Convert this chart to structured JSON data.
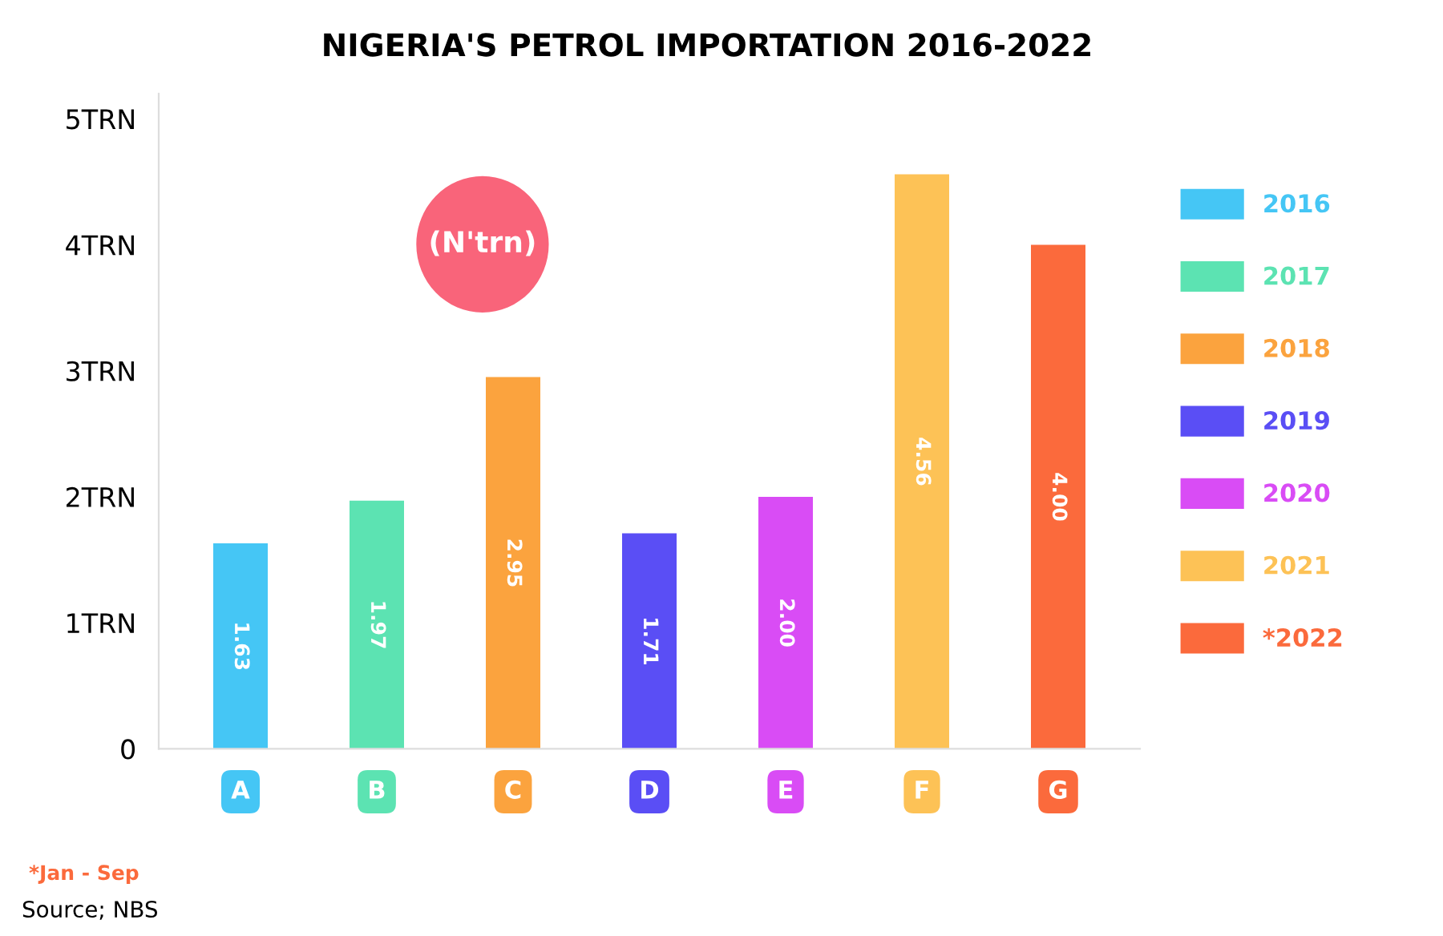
{
  "chart_data": {
    "type": "bar",
    "title": "NIGERIA'S PETROL IMPORTATION 2016-2022",
    "categories": [
      "A",
      "B",
      "C",
      "D",
      "E",
      "F",
      "G"
    ],
    "series": [
      {
        "name": "2016",
        "color": "#45c6f5",
        "values": [
          1.63,
          null,
          null,
          null,
          null,
          null,
          null
        ],
        "value_labels": [
          "1.63",
          null,
          null,
          null,
          null,
          null,
          null
        ]
      },
      {
        "name": "2017",
        "color": "#5ce3b2",
        "values": [
          null,
          1.97,
          null,
          null,
          null,
          null,
          null
        ],
        "value_labels": [
          null,
          "1.97",
          null,
          null,
          null,
          null,
          null
        ]
      },
      {
        "name": "2018",
        "color": "#fba33e",
        "values": [
          null,
          null,
          2.95,
          null,
          null,
          null,
          null
        ],
        "value_labels": [
          null,
          null,
          "2.95",
          null,
          null,
          null,
          null
        ]
      },
      {
        "name": "2019",
        "color": "#5a4ef5",
        "values": [
          null,
          null,
          null,
          1.71,
          null,
          null,
          null
        ],
        "value_labels": [
          null,
          null,
          null,
          "1.71",
          null,
          null,
          null
        ]
      },
      {
        "name": "2020",
        "color": "#d94cf5",
        "values": [
          null,
          null,
          null,
          null,
          2.0,
          null,
          null
        ],
        "value_labels": [
          null,
          null,
          null,
          null,
          "2.00",
          null,
          null
        ]
      },
      {
        "name": "2021",
        "color": "#fdc256",
        "values": [
          null,
          null,
          null,
          null,
          null,
          4.56,
          null
        ],
        "value_labels": [
          null,
          null,
          null,
          null,
          null,
          "4.56",
          null
        ]
      },
      {
        "name": "*2022",
        "color": "#fb6a3c",
        "values": [
          null,
          null,
          null,
          null,
          null,
          null,
          4.0
        ],
        "value_labels": [
          null,
          null,
          null,
          null,
          null,
          null,
          "4.00"
        ]
      }
    ],
    "ylim": [
      0,
      5.2
    ],
    "yticks": [
      0,
      {
        "value": 1,
        "label": "1TRN"
      },
      {
        "value": 2,
        "label": "2TRN"
      },
      {
        "value": 3,
        "label": "3TRN"
      },
      {
        "value": 4,
        "label": "4TRN"
      },
      {
        "value": 5,
        "label": "5TRN"
      }
    ],
    "legend": "right",
    "grid": false,
    "annotations": [
      "(N'trn)",
      "*Jan - Sep",
      "Source; NBS"
    ]
  }
}
